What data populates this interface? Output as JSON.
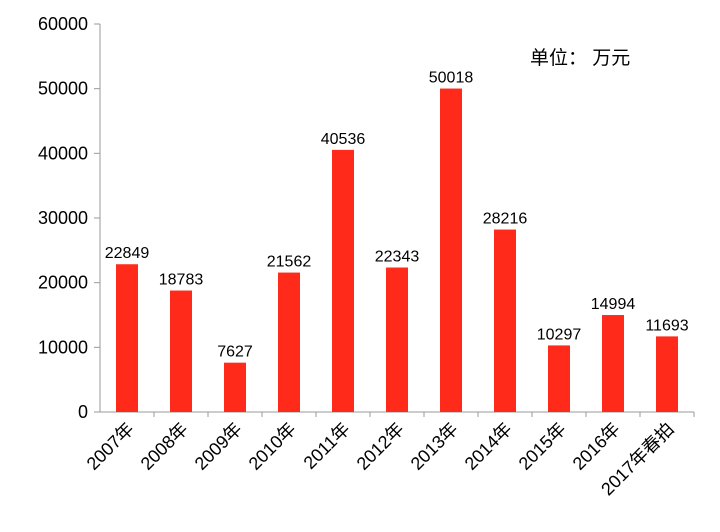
{
  "chart_data": {
    "type": "bar",
    "categories": [
      "2007年",
      "2008年",
      "2009年",
      "2010年",
      "2011年",
      "2012年",
      "2013年",
      "2014年",
      "2015年",
      "2016年",
      "2017年春拍"
    ],
    "values": [
      22849,
      18783,
      7627,
      21562,
      40536,
      22343,
      50018,
      28216,
      10297,
      14994,
      11693
    ],
    "ylim": [
      0,
      60000
    ],
    "yticks": [
      0,
      10000,
      20000,
      30000,
      40000,
      50000,
      60000
    ],
    "unit_label": "单位：  万元",
    "grid": false,
    "bar_color": "#ff2a1a"
  }
}
